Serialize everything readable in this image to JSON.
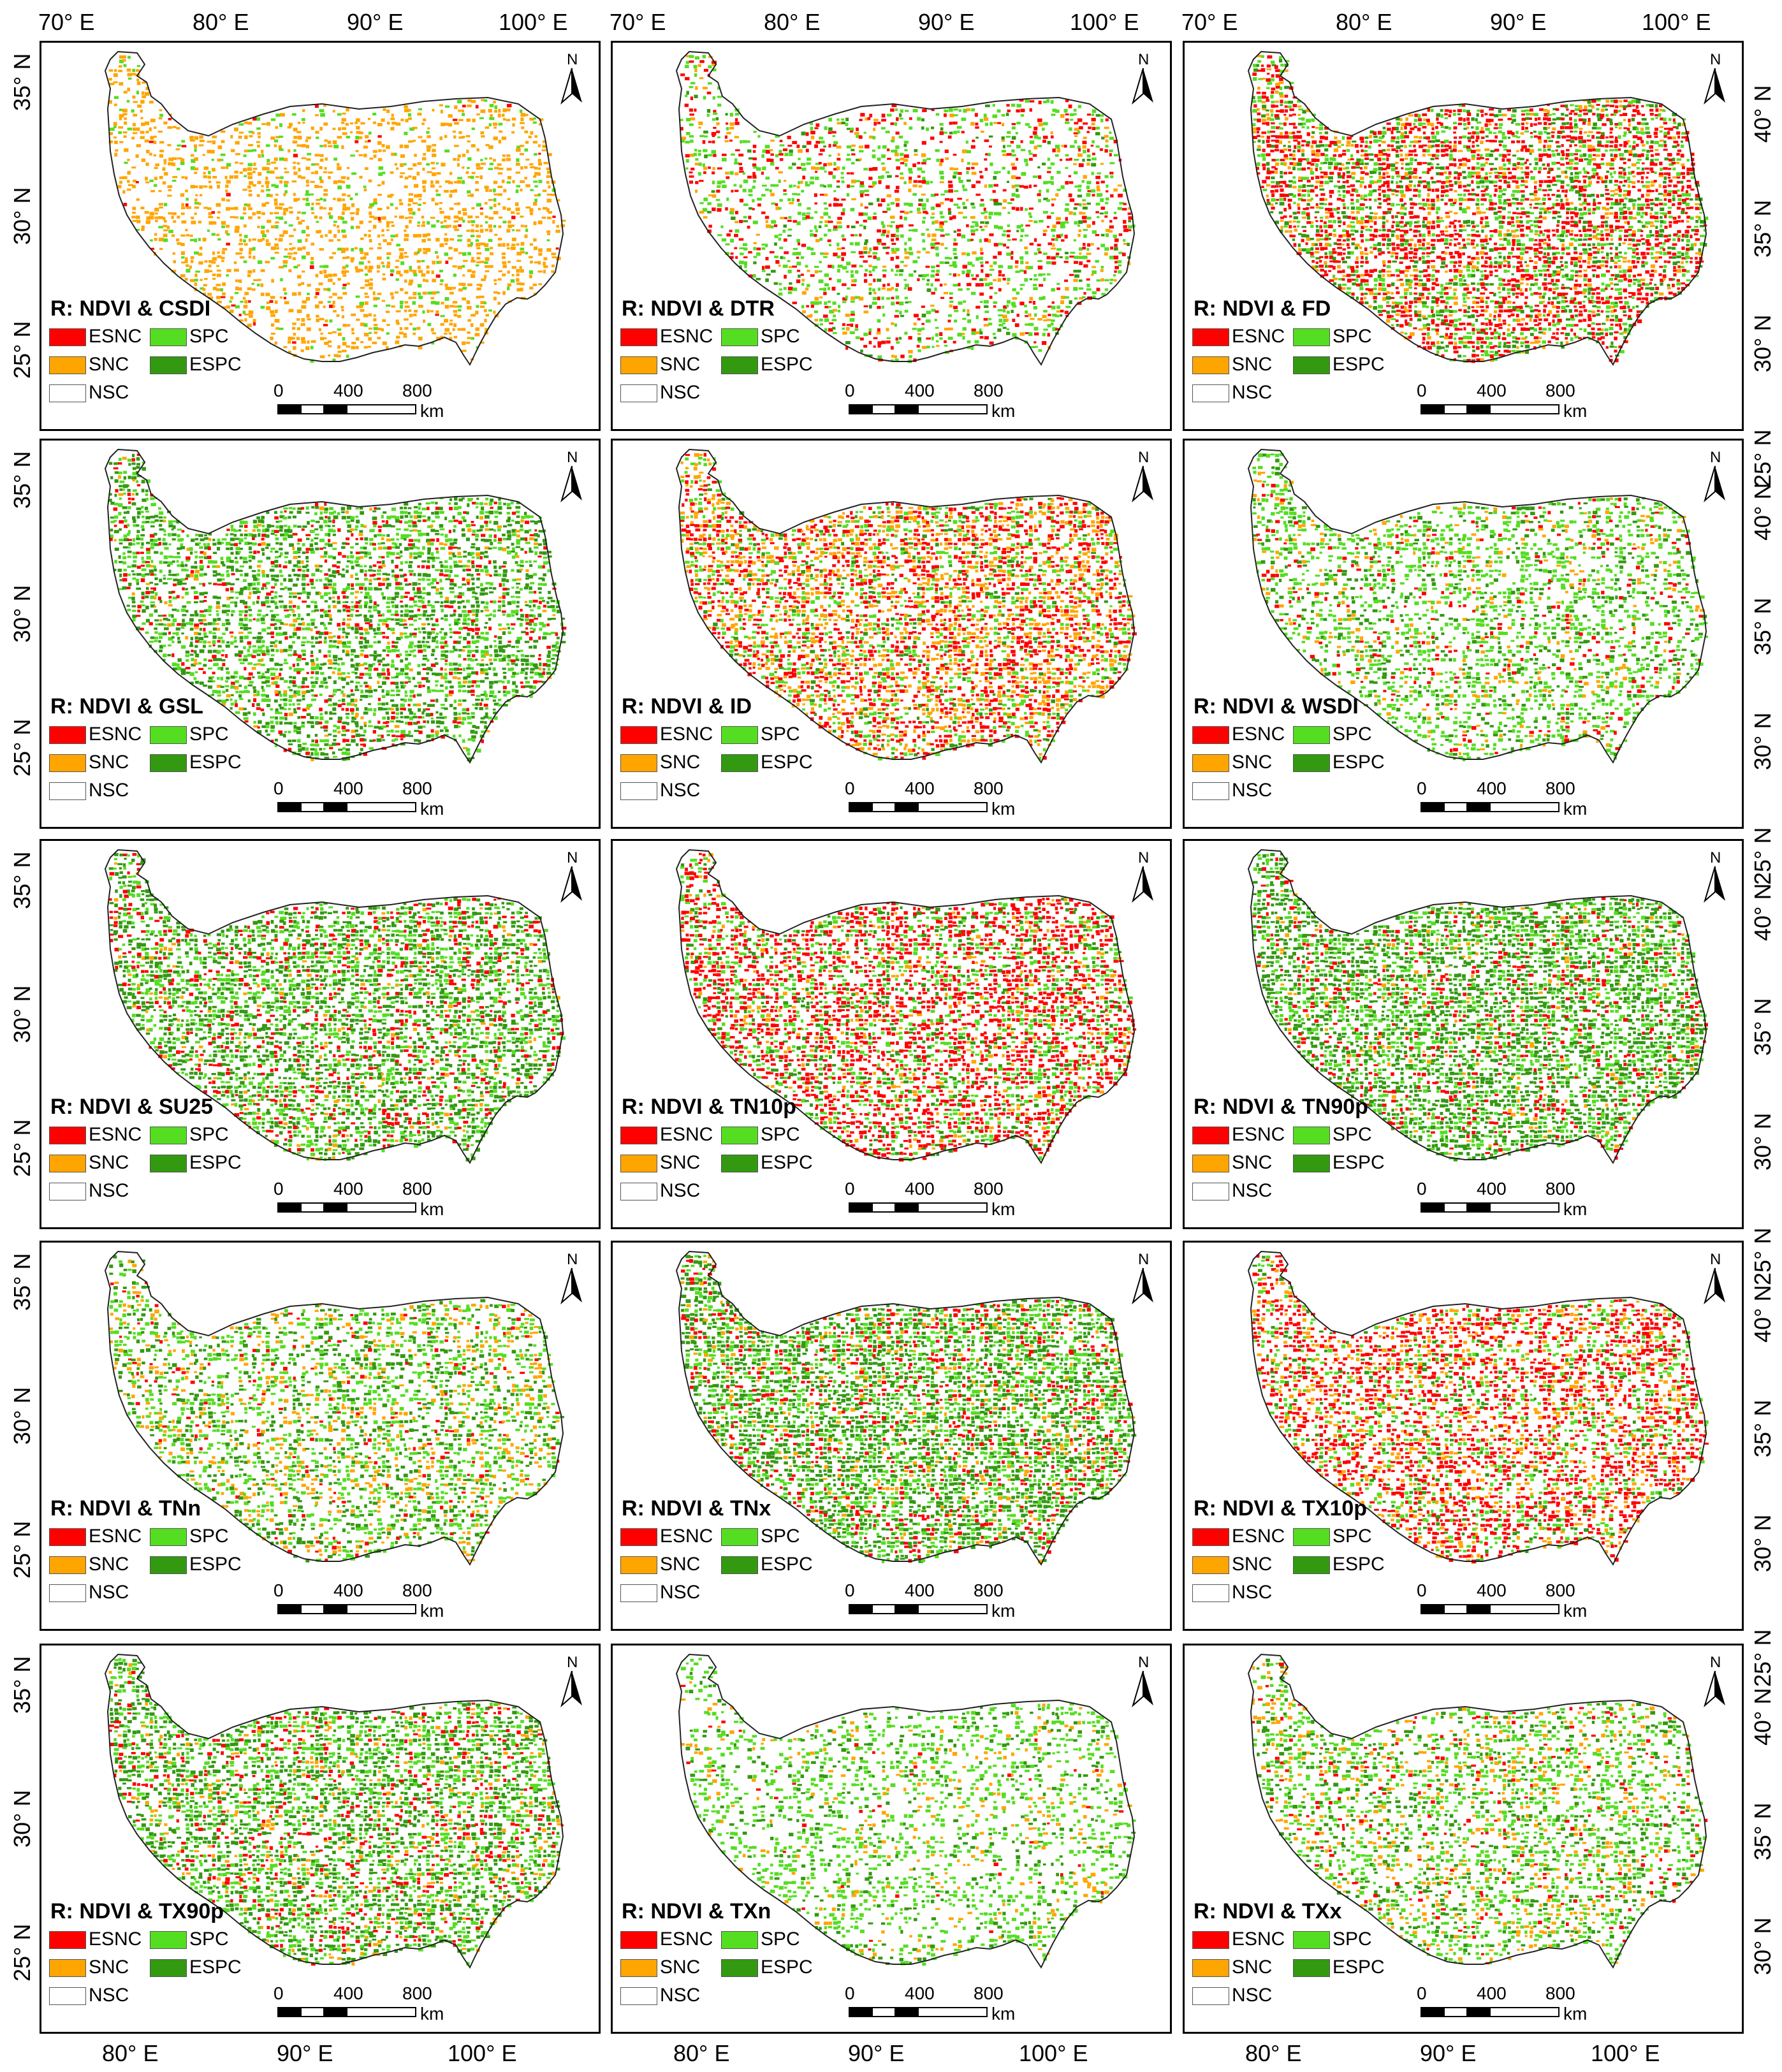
{
  "figure": {
    "top_lon_labels": [
      "70° E",
      "80° E",
      "90° E",
      "100° E"
    ],
    "bottom_lon_labels": [
      "80° E",
      "90° E",
      "100° E"
    ],
    "left_lat_labels": [
      "35° N",
      "30° N",
      "25° N"
    ],
    "right_lat_labels": [
      "40° N",
      "35° N",
      "30° N",
      "25° N"
    ]
  },
  "legend": {
    "items": [
      {
        "label": "ESNC",
        "color": "#ff0000"
      },
      {
        "label": "SPC",
        "color": "#55dd22"
      },
      {
        "label": "SNC",
        "color": "#ffa500"
      },
      {
        "label": "ESPC",
        "color": "#339911"
      },
      {
        "label": "NSC",
        "color": "#ffffff"
      }
    ]
  },
  "scale_bar": {
    "labels": [
      "0",
      "400",
      "800"
    ],
    "unit": "km"
  },
  "north_label": "N",
  "panels": [
    {
      "title": "R: NDVI & CSDI",
      "mix": [
        0.01,
        0.3,
        0.06,
        0.0
      ]
    },
    {
      "title": "R: NDVI & DTR",
      "mix": [
        0.12,
        0.06,
        0.18,
        0.03
      ]
    },
    {
      "title": "R: NDVI & FD",
      "mix": [
        0.35,
        0.1,
        0.18,
        0.14
      ]
    },
    {
      "title": "R: NDVI & GSL",
      "mix": [
        0.1,
        0.04,
        0.22,
        0.3
      ]
    },
    {
      "title": "R: NDVI & ID",
      "mix": [
        0.28,
        0.22,
        0.16,
        0.06
      ]
    },
    {
      "title": "R: NDVI & WSDI",
      "mix": [
        0.05,
        0.06,
        0.26,
        0.12
      ]
    },
    {
      "title": "R: NDVI & SU25",
      "mix": [
        0.12,
        0.03,
        0.22,
        0.34
      ]
    },
    {
      "title": "R: NDVI & TN10p",
      "mix": [
        0.38,
        0.06,
        0.18,
        0.1
      ]
    },
    {
      "title": "R: NDVI & TN90p",
      "mix": [
        0.1,
        0.03,
        0.22,
        0.42
      ]
    },
    {
      "title": "R: NDVI & TNn",
      "mix": [
        0.03,
        0.12,
        0.2,
        0.18
      ]
    },
    {
      "title": "R: NDVI & TNx",
      "mix": [
        0.12,
        0.06,
        0.22,
        0.4
      ]
    },
    {
      "title": "R: NDVI & TX10p",
      "mix": [
        0.32,
        0.12,
        0.14,
        0.06
      ]
    },
    {
      "title": "R: NDVI & TX90p",
      "mix": [
        0.1,
        0.06,
        0.22,
        0.3
      ]
    },
    {
      "title": "R: NDVI & TXn",
      "mix": [
        0.01,
        0.05,
        0.22,
        0.08
      ]
    },
    {
      "title": "R: NDVI & TXx",
      "mix": [
        0.04,
        0.1,
        0.22,
        0.14
      ]
    }
  ]
}
